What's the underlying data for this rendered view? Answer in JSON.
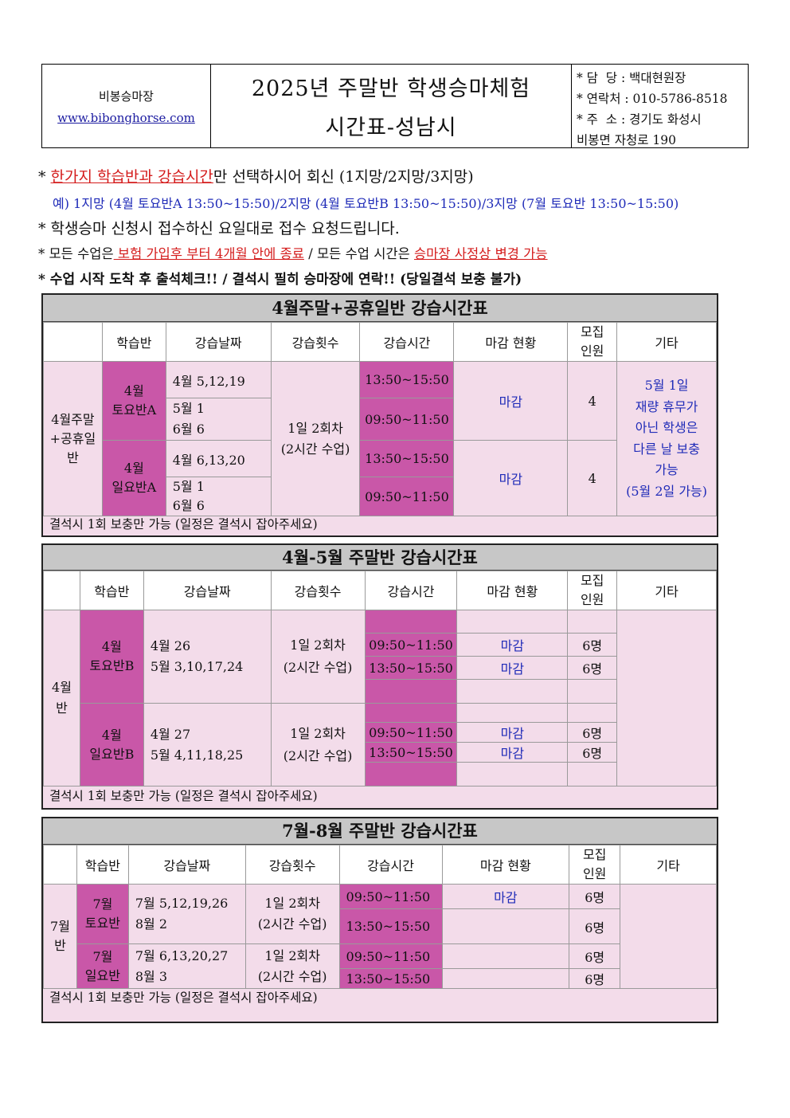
{
  "header": {
    "org": "비봉승마장",
    "url": "www.bibonghorse.com",
    "title_line1": "2025년 주말반 학생승마체험",
    "title_line2": "시간표-성남시",
    "contact_manager": "* 담  당 : 백대현원장",
    "contact_phone": "* 연락처 : 010-5786-8518",
    "contact_addr1": "* 주  소 : 경기도 화성시",
    "contact_addr2": "비봉면 자청로 190"
  },
  "notes": {
    "n1_star": "*",
    "n1_red": "한가지 학습반과 강습시간",
    "n1_rest": "만 선택하시어 회신 (1지망/2지망/3지망)",
    "n2": "예) 1지망 (4월 토요반A 13:50~15:50)/2지망 (4월 토요반B 13:50~15:50)/3지망 (7월 토요반 13:50~15:50)",
    "n3": "* 학생승마 신청시 접수하신 요일대로 접수 요청드립니다.",
    "n4_a": "* 모든 수업은",
    "n4_red1": " 보험 가입후 부터 4개월 안에 종료",
    "n4_b": " / 모든 수업 시간은 ",
    "n4_red2": "승마장 사정상 변경 가능",
    "n5": "* 수업 시작 도착 후 출석체크!! / 결석시 필히 승마장에 연락!! (당일결석 보충 불가)"
  },
  "columns": {
    "class": "학습반",
    "dates": "강습날짜",
    "count": "강습횟수",
    "time": "강습시간",
    "status": "마감 현황",
    "recruit1": "모집",
    "recruit2": "인원",
    "etc": "기타"
  },
  "t1": {
    "title": "4월주말+공휴일반 강습시간표",
    "group": "4월주말\n+공휴일\n반",
    "sat_class": "4월\n토요반A",
    "sat_d1": "4월 5,12,19",
    "sat_d2": "5월 1\n6월 6",
    "sun_class": "4월\n일요반A",
    "sun_d1": "4월 6,13,20",
    "sun_d2": "5월 1\n6월 6",
    "count": "1일 2회차\n(2시간 수업)",
    "time_pm": "13:50~15:50",
    "time_am": "09:50~11:50",
    "status": "마감",
    "recruit": "4",
    "etc": "5월 1일\n재량 휴무가\n아닌 학생은\n다른 날 보충\n가능\n(5월 2일 가능)",
    "foot": "결석시 1회 보충만 가능 (일정은 결석시 잡아주세요)"
  },
  "t2": {
    "title": "4월-5월 주말반 강습시간표",
    "group": "4월\n반",
    "sat_class": "4월\n토요반B",
    "sat_dates": "4월 26\n5월 3,10,17,24",
    "sun_class": "4월\n일요반B",
    "sun_dates": "4월 27\n5월 4,11,18,25",
    "count": "1일 2회차\n(2시간 수업)",
    "time_am": "09:50~11:50",
    "time_pm": "13:50~15:50",
    "status": "마감",
    "recruit": "6명",
    "foot": "결석시 1회 보충만 가능 (일정은 결석시 잡아주세요)"
  },
  "t3": {
    "title": "7월-8월 주말반 강습시간표",
    "group": "7월\n반",
    "sat_class": "7월\n토요반",
    "sat_dates": "7월 5,12,19,26\n8월 2",
    "sun_class": "7월\n일요반",
    "sun_dates": "7월 6,13,20,27\n8월 3",
    "count": "1일 2회차\n(2시간 수업)",
    "time_am": "09:50~11:50",
    "time_pm": "13:50~15:50",
    "status": "마감",
    "recruit": "6명",
    "foot": "결석시 1회 보충만 가능 (일정은 결석시 잡아주세요)"
  },
  "colors": {
    "magenta": "#c957a8",
    "pink": "#f3dcea",
    "title_gray": "#c7c7c7",
    "blue": "#1f2bb8",
    "red": "#d41c1c"
  }
}
